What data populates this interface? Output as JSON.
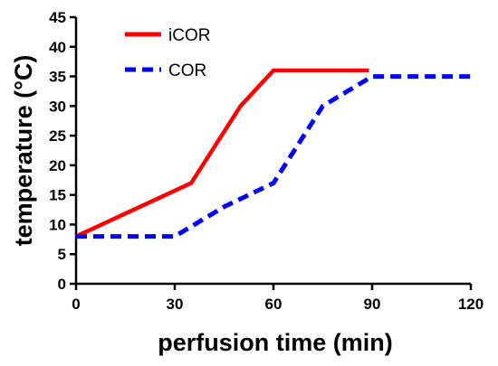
{
  "chart_data": {
    "type": "line",
    "xlabel": "perfusion time (min)",
    "ylabel": "temperature (°C)",
    "xlim": [
      0,
      120
    ],
    "ylim": [
      0,
      45
    ],
    "xticks": [
      0,
      30,
      60,
      90,
      120
    ],
    "yticks": [
      0,
      5,
      10,
      15,
      20,
      25,
      30,
      35,
      40,
      45
    ],
    "grid": false,
    "legend": "top-left",
    "series": [
      {
        "name": "iCOR",
        "color": "#ff0000",
        "style": "solid",
        "points": [
          [
            0,
            8
          ],
          [
            35,
            17
          ],
          [
            50,
            30
          ],
          [
            60,
            36
          ],
          [
            89,
            36
          ]
        ]
      },
      {
        "name": "COR",
        "color": "#0000ff",
        "style": "dashed",
        "points": [
          [
            0,
            8
          ],
          [
            30,
            8
          ],
          [
            45,
            13
          ],
          [
            60,
            17
          ],
          [
            75,
            30
          ],
          [
            90,
            35
          ],
          [
            120,
            35
          ]
        ]
      }
    ]
  }
}
